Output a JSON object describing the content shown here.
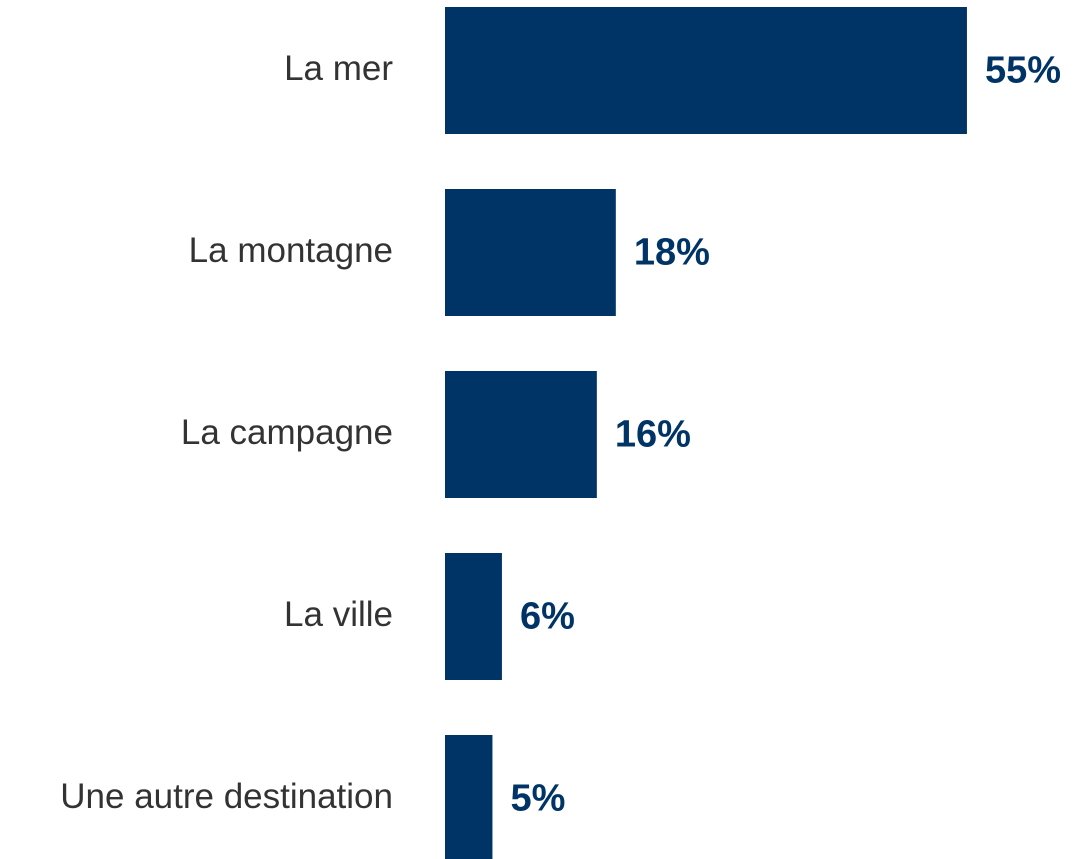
{
  "chart_data": {
    "type": "bar",
    "orientation": "horizontal",
    "categories": [
      "La mer",
      "La montagne",
      "La campagne",
      "La ville",
      "Une autre destination"
    ],
    "values": [
      55,
      18,
      16,
      6,
      5
    ],
    "value_labels": [
      "55%",
      "18%",
      "16%",
      "6%",
      "5%"
    ],
    "color": "#003466"
  }
}
